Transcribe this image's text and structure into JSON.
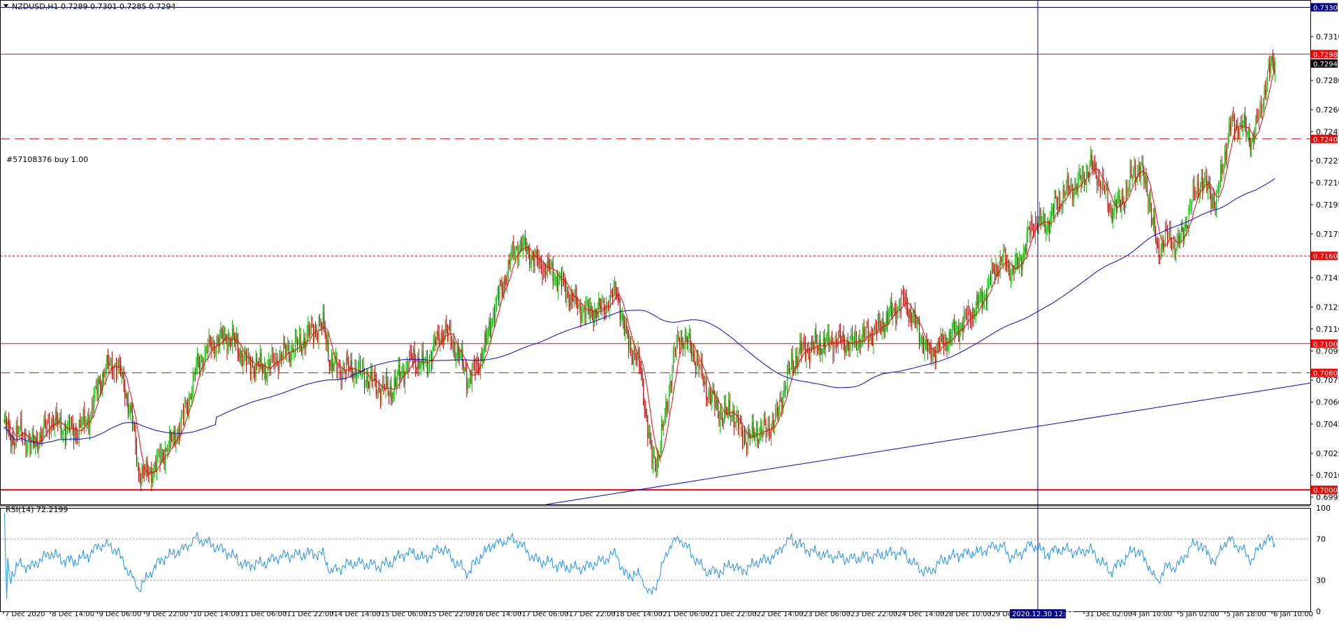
{
  "chart_data": {
    "type": "candlestick",
    "title": "NZDUSD,H1  0.7289 0.7301 0.7285 0.7294",
    "symbol": "NZDUSD",
    "timeframe": "H1",
    "ohlc": {
      "open": 0.7289,
      "high": 0.7301,
      "low": 0.7285,
      "close": 0.7294
    },
    "order_label": "#57108376 buy 1.00",
    "current_price_label": "0.7294",
    "ylim": [
      0.699,
      0.7335
    ],
    "y_ticks": [
      "0.7310",
      "0.7280",
      "0.7260",
      "0.7245",
      "0.7225",
      "0.7210",
      "0.7195",
      "0.7175",
      "0.7145",
      "0.7125",
      "0.7110",
      "0.7095",
      "0.7075",
      "0.7060",
      "0.7045",
      "0.7025",
      "0.7010",
      "0.6995"
    ],
    "x_ticks": [
      "7 Dec 2020",
      "8 Dec 14:00",
      "9 Dec 06:00",
      "9 Dec 22:00",
      "10 Dec 14:00",
      "11 Dec 06:00",
      "11 Dec 22:00",
      "14 Dec 14:00",
      "15 Dec 06:00",
      "15 Dec 22:00",
      "16 Dec 14:00",
      "17 Dec 06:00",
      "17 Dec 22:00",
      "18 Dec 14:00",
      "21 Dec 06:00",
      "21 Dec 22:00",
      "22 Dec 14:00",
      "23 Dec 06:00",
      "23 Dec 22:00",
      "24 Dec 14:00",
      "28 Dec 10:00",
      "29 Dec 02:00",
      "29 Dec",
      "31 Dec 02:00",
      "4 Jan 10:00",
      "5 Jan 02:00",
      "5 Jan 18:00",
      "6 Jan 10:00"
    ],
    "crosshair_time_label": "2020.12.30 12:00",
    "levels": [
      {
        "price": 0.733,
        "label": "0.7330",
        "style": "solid",
        "color": "#00008b"
      },
      {
        "price": 0.7298,
        "label": "0.7298",
        "style": "solid",
        "color": "#ff0000"
      },
      {
        "price": 0.724,
        "label": "0.7240",
        "style": "dashed",
        "color": "#ff0000"
      },
      {
        "price": 0.716,
        "label": "0.7160",
        "style": "dotted",
        "color": "#ff0000"
      },
      {
        "price": 0.71,
        "label": "0.7100",
        "style": "solid",
        "color": "#ff0000"
      },
      {
        "price": 0.708,
        "label": "0.7080",
        "style": "dashed",
        "color": "#ff0000"
      },
      {
        "price": 0.7,
        "label": "0.7000",
        "style": "solid",
        "color": "#ff0000"
      }
    ],
    "trendline": {
      "from": [
        0.61,
        0.699
      ],
      "to": [
        2.02,
        0.7073
      ],
      "color": "#0000ff"
    },
    "price_path": [
      [
        0,
        0.7045
      ],
      [
        10,
        0.7035
      ],
      [
        20,
        0.704
      ],
      [
        32,
        0.703
      ],
      [
        45,
        0.7038
      ],
      [
        55,
        0.7048
      ],
      [
        70,
        0.7042
      ],
      [
        85,
        0.704
      ],
      [
        100,
        0.705
      ],
      [
        110,
        0.7072
      ],
      [
        122,
        0.7085
      ],
      [
        132,
        0.7085
      ],
      [
        140,
        0.7072
      ],
      [
        150,
        0.7045
      ],
      [
        157,
        0.7012
      ],
      [
        165,
        0.701
      ],
      [
        175,
        0.7015
      ],
      [
        185,
        0.7025
      ],
      [
        196,
        0.7033
      ],
      [
        206,
        0.7045
      ],
      [
        215,
        0.7062
      ],
      [
        225,
        0.7085
      ],
      [
        240,
        0.7098
      ],
      [
        258,
        0.7105
      ],
      [
        270,
        0.71
      ],
      [
        280,
        0.7088
      ],
      [
        292,
        0.7085
      ],
      [
        305,
        0.7083
      ],
      [
        318,
        0.709
      ],
      [
        330,
        0.7095
      ],
      [
        345,
        0.71
      ],
      [
        360,
        0.711
      ],
      [
        372,
        0.7112
      ],
      [
        380,
        0.7085
      ],
      [
        392,
        0.7082
      ],
      [
        405,
        0.7083
      ],
      [
        420,
        0.7078
      ],
      [
        435,
        0.707
      ],
      [
        450,
        0.7068
      ],
      [
        462,
        0.708
      ],
      [
        475,
        0.709
      ],
      [
        490,
        0.7085
      ],
      [
        500,
        0.7098
      ],
      [
        512,
        0.711
      ],
      [
        520,
        0.7102
      ],
      [
        530,
        0.709
      ],
      [
        540,
        0.7075
      ],
      [
        550,
        0.7085
      ],
      [
        560,
        0.71
      ],
      [
        570,
        0.7125
      ],
      [
        580,
        0.714
      ],
      [
        590,
        0.716
      ],
      [
        600,
        0.7168
      ],
      [
        610,
        0.7162
      ],
      [
        620,
        0.7155
      ],
      [
        635,
        0.715
      ],
      [
        650,
        0.714
      ],
      [
        660,
        0.713
      ],
      [
        675,
        0.7122
      ],
      [
        690,
        0.7122
      ],
      [
        705,
        0.713
      ],
      [
        712,
        0.7138
      ],
      [
        720,
        0.711
      ],
      [
        730,
        0.7095
      ],
      [
        740,
        0.7082
      ],
      [
        748,
        0.704
      ],
      [
        753,
        0.702
      ],
      [
        760,
        0.7022
      ],
      [
        768,
        0.705
      ],
      [
        778,
        0.709
      ],
      [
        785,
        0.7105
      ],
      [
        795,
        0.71
      ],
      [
        805,
        0.7088
      ],
      [
        815,
        0.707
      ],
      [
        825,
        0.706
      ],
      [
        835,
        0.705
      ],
      [
        845,
        0.7055
      ],
      [
        855,
        0.704
      ],
      [
        865,
        0.7035
      ],
      [
        875,
        0.704
      ],
      [
        885,
        0.704
      ],
      [
        898,
        0.705
      ],
      [
        905,
        0.7068
      ],
      [
        915,
        0.7085
      ],
      [
        925,
        0.7095
      ],
      [
        940,
        0.7098
      ],
      [
        955,
        0.71
      ],
      [
        970,
        0.7102
      ],
      [
        985,
        0.71
      ],
      [
        1000,
        0.7105
      ],
      [
        1015,
        0.711
      ],
      [
        1030,
        0.712
      ],
      [
        1045,
        0.713
      ],
      [
        1055,
        0.7118
      ],
      [
        1065,
        0.7105
      ],
      [
        1075,
        0.7092
      ],
      [
        1085,
        0.7098
      ],
      [
        1100,
        0.7105
      ],
      [
        1115,
        0.7115
      ],
      [
        1130,
        0.7125
      ],
      [
        1140,
        0.7135
      ],
      [
        1150,
        0.715
      ],
      [
        1160,
        0.7158
      ],
      [
        1170,
        0.715
      ],
      [
        1180,
        0.7155
      ],
      [
        1190,
        0.7175
      ],
      [
        1200,
        0.7185
      ],
      [
        1210,
        0.718
      ],
      [
        1222,
        0.7195
      ],
      [
        1235,
        0.7205
      ],
      [
        1250,
        0.721
      ],
      [
        1262,
        0.7222
      ],
      [
        1275,
        0.721
      ],
      [
        1285,
        0.7192
      ],
      [
        1295,
        0.7195
      ],
      [
        1305,
        0.7205
      ],
      [
        1312,
        0.7218
      ],
      [
        1320,
        0.722
      ],
      [
        1330,
        0.72
      ],
      [
        1340,
        0.716
      ],
      [
        1348,
        0.7175
      ],
      [
        1358,
        0.7168
      ],
      [
        1368,
        0.7172
      ],
      [
        1378,
        0.7195
      ],
      [
        1390,
        0.7212
      ],
      [
        1400,
        0.7205
      ],
      [
        1408,
        0.7195
      ],
      [
        1415,
        0.7222
      ],
      [
        1425,
        0.725
      ],
      [
        1440,
        0.7248
      ],
      [
        1450,
        0.7238
      ],
      [
        1458,
        0.7258
      ],
      [
        1466,
        0.7278
      ],
      [
        1472,
        0.7292
      ],
      [
        1476,
        0.7294
      ]
    ],
    "ma_fast": {
      "color": "#ff0000",
      "period": 10
    },
    "ma_slow": {
      "color": "#0000ff",
      "period": 200
    },
    "rsi": {
      "label": "RSI(14) 72.2199",
      "ylim": [
        0,
        100
      ],
      "y_ticks": [
        "100",
        "70",
        "30",
        "0"
      ],
      "levels": [
        70,
        30
      ],
      "color": "#1e90ff"
    },
    "colors": {
      "bull": "#00c000",
      "bear": "#c00000",
      "background": "#ffffff"
    }
  }
}
